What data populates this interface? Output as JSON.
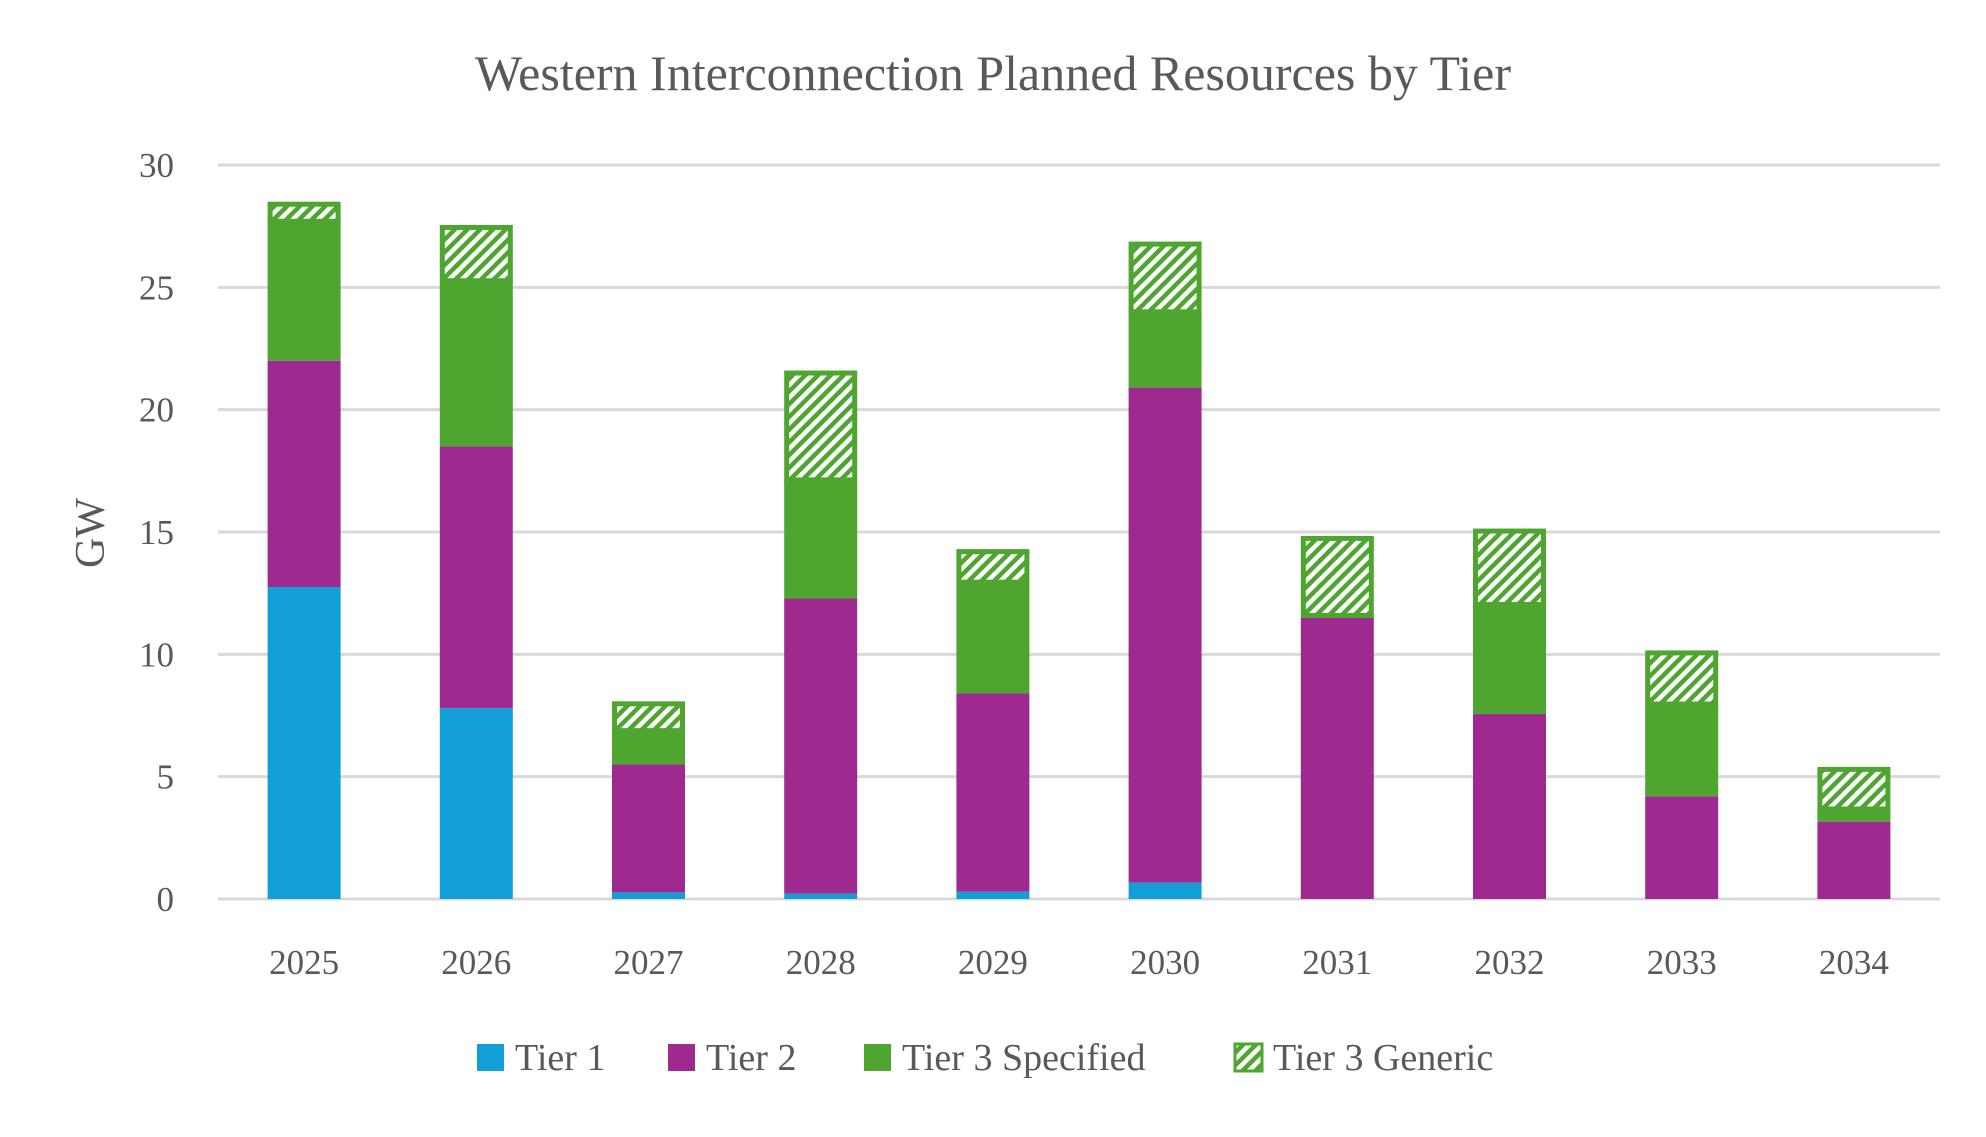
{
  "chart_data": {
    "type": "bar",
    "stacked": true,
    "title": "Western Interconnection Planned Resources by Tier",
    "xlabel": "",
    "ylabel": "GW",
    "ylim": [
      0,
      30
    ],
    "yticks": [
      0,
      5,
      10,
      15,
      20,
      25,
      30
    ],
    "grid": true,
    "legend_position": "bottom",
    "categories": [
      "2025",
      "2026",
      "2027",
      "2028",
      "2029",
      "2030",
      "2031",
      "2032",
      "2033",
      "2034"
    ],
    "series": [
      {
        "name": "Tier 1",
        "color": "#129FD7",
        "pattern": "solid",
        "values": [
          12.75,
          7.8,
          0.27,
          0.22,
          0.3,
          0.67,
          0,
          0,
          0,
          0
        ]
      },
      {
        "name": "Tier 2",
        "color": "#9E2A90",
        "pattern": "solid",
        "values": [
          9.25,
          10.7,
          5.23,
          12.06,
          8.1,
          20.23,
          11.49,
          7.56,
          4.2,
          3.16
        ]
      },
      {
        "name": "Tier 3 Specified",
        "color": "#4EA52F",
        "pattern": "solid",
        "values": [
          5.7,
          6.77,
          1.38,
          4.85,
          4.55,
          3.1,
          0.1,
          4.48,
          3.77,
          0.52
        ]
      },
      {
        "name": "Tier 3 Generic",
        "color": "#4EA52F",
        "pattern": "hatched",
        "values": [
          0.8,
          2.28,
          1.2,
          4.47,
          1.35,
          2.87,
          3.25,
          3.1,
          2.19,
          1.72
        ]
      }
    ]
  }
}
